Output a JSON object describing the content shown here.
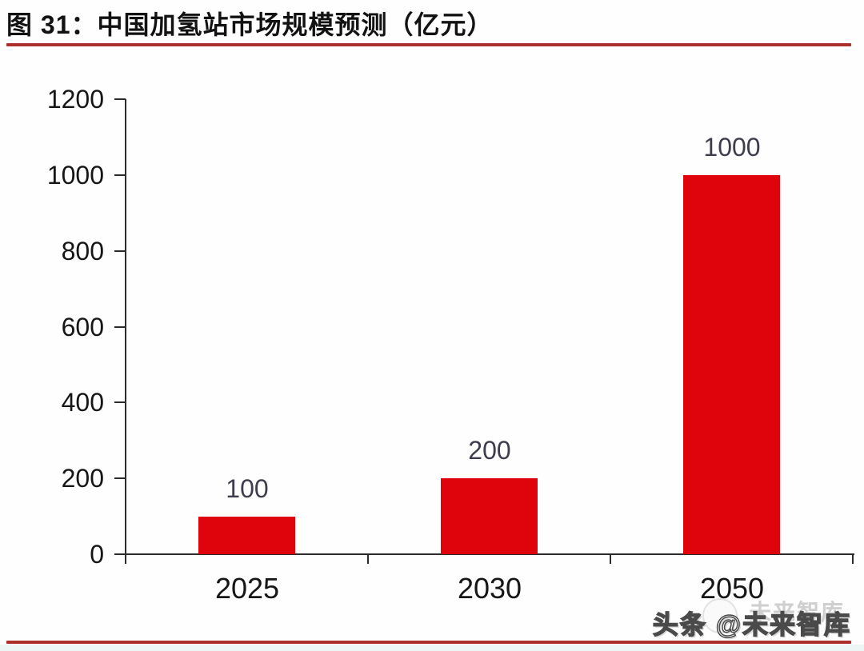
{
  "figure": {
    "title": "图 31：中国加氢站市场规模预测（亿元）",
    "accent_color": "#ab2f2a",
    "watermark_back": "未来智库",
    "watermark_front": "头条 @未来智库"
  },
  "chart_data": {
    "type": "bar",
    "title": "中国加氢站市场规模预测（亿元）",
    "categories": [
      "2025",
      "2030",
      "2050"
    ],
    "values": [
      100,
      200,
      1000
    ],
    "data_labels": [
      "100",
      "200",
      "1000"
    ],
    "xlabel": "",
    "ylabel": "",
    "ylim": [
      0,
      1200
    ],
    "yticks": [
      0,
      200,
      400,
      600,
      800,
      1000,
      1200
    ],
    "grid": false,
    "legend": "none",
    "bar_color": "#df040c",
    "value_label_color": "#3d3d4d",
    "axis_color": "#2b2b2b"
  }
}
